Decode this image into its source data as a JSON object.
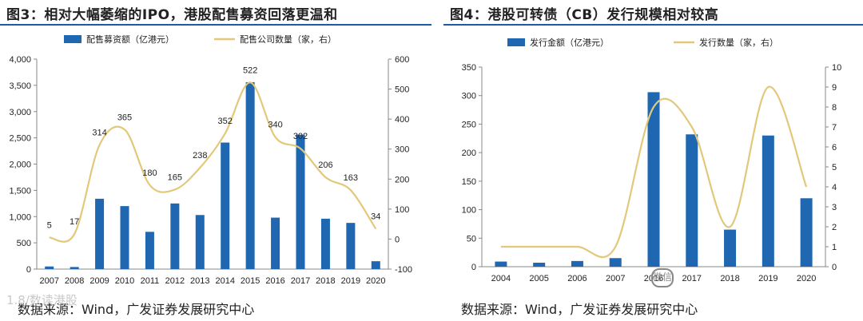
{
  "colors": {
    "bar": "#1f67b0",
    "line": "#e3c87a",
    "axis": "#888888",
    "title_rule": "#1f5aa6"
  },
  "watermark": {
    "left": "1.8/数读港股",
    "right_icon": "微信"
  },
  "chart_data": [
    {
      "id": "left",
      "type": "bar",
      "title": "图3：相对大幅萎缩的IPO，港股配售募资回落更温和",
      "source": "数据来源：Wind，广发证券发展研究中心",
      "categories": [
        "2007",
        "2008",
        "2009",
        "2010",
        "2011",
        "2012",
        "2013",
        "2014",
        "2015",
        "2016",
        "2017",
        "2018",
        "2019",
        "2020"
      ],
      "series": [
        {
          "name": "配售募资额（亿港元）",
          "kind": "bar",
          "axis": "left",
          "values": [
            50,
            40,
            1340,
            1200,
            710,
            1250,
            1030,
            2410,
            3560,
            980,
            2560,
            960,
            880,
            150
          ]
        },
        {
          "name": "配售公司数量（家，右）",
          "kind": "line",
          "axis": "right",
          "values": [
            5,
            17,
            314,
            365,
            180,
            165,
            238,
            352,
            522,
            340,
            302,
            206,
            163,
            34
          ],
          "labels": [
            "5",
            "17",
            "314",
            "365",
            "180",
            "165",
            "238",
            "352",
            "522",
            "340",
            "302",
            "206",
            "163",
            "34"
          ]
        }
      ],
      "y_left": {
        "min": 0,
        "max": 4000,
        "ticks": [
          0,
          500,
          1000,
          1500,
          2000,
          2500,
          3000,
          3500,
          4000
        ],
        "tick_labels": [
          "0",
          "500",
          "1,000",
          "1,500",
          "2,000",
          "2,500",
          "3,000",
          "3,500",
          "4,000"
        ]
      },
      "y_right": {
        "min": -100,
        "max": 600,
        "ticks": [
          -100,
          0,
          100,
          200,
          300,
          400,
          500,
          600
        ],
        "tick_labels": [
          "-100",
          "0",
          "100",
          "200",
          "300",
          "400",
          "500",
          "600"
        ]
      },
      "legend_position": "top"
    },
    {
      "id": "right",
      "type": "bar",
      "title": "图4：港股可转债（CB）发行规模相对较高",
      "source": "数据来源：Wind，广发证券发展研究中心",
      "categories": [
        "2004",
        "2005",
        "2006",
        "2007",
        "2016",
        "2017",
        "2018",
        "2019",
        "2020"
      ],
      "x_labels": [
        "2004",
        "2005",
        "2006",
        "2007",
        "2016",
        "2017",
        "2018",
        "2019",
        "2020"
      ],
      "series": [
        {
          "name": "发行金额（亿港元）",
          "kind": "bar",
          "axis": "left",
          "values": [
            9,
            7,
            10,
            15,
            306,
            232,
            65,
            230,
            120
          ]
        },
        {
          "name": "发行数量（家，右）",
          "kind": "line",
          "axis": "right",
          "values": [
            1,
            1,
            1,
            1,
            8,
            7,
            2,
            9,
            4
          ]
        }
      ],
      "y_left": {
        "min": 0,
        "max": 350,
        "ticks": [
          0,
          50,
          100,
          150,
          200,
          250,
          300,
          350
        ],
        "tick_labels": [
          "0",
          "50",
          "100",
          "150",
          "200",
          "250",
          "300",
          "350"
        ]
      },
      "y_right": {
        "min": 0,
        "max": 10,
        "ticks": [
          0,
          1,
          2,
          3,
          4,
          5,
          6,
          7,
          8,
          9,
          10
        ],
        "tick_labels": [
          "0",
          "1",
          "2",
          "3",
          "4",
          "5",
          "6",
          "7",
          "8",
          "9",
          "10"
        ]
      },
      "legend_position": "top"
    }
  ]
}
